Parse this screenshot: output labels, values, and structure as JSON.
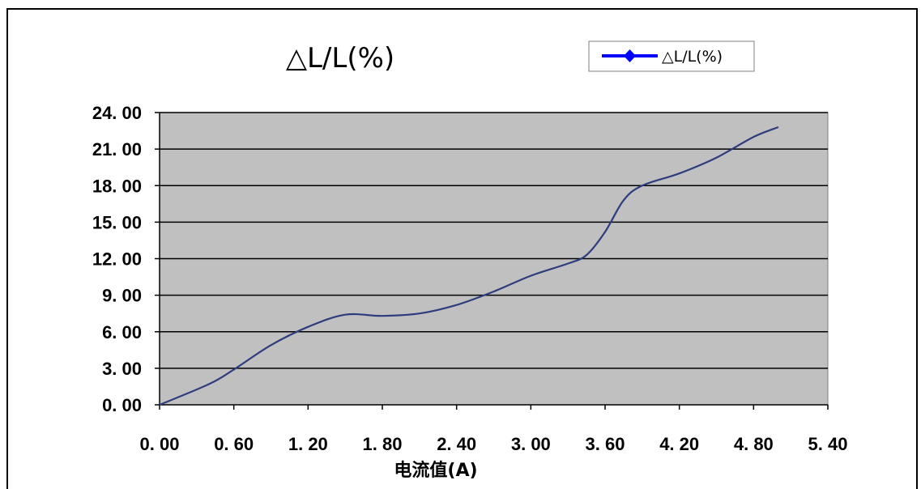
{
  "chart_data": {
    "type": "line",
    "title": "△L/L(%)",
    "xlabel": "电流值(A)",
    "ylabel": "",
    "xlim": [
      0,
      5.4
    ],
    "ylim": [
      0,
      24
    ],
    "xticks": [
      0,
      0.6,
      1.2,
      1.8,
      2.4,
      3.0,
      3.6,
      4.2,
      4.8,
      5.4
    ],
    "yticks": [
      0,
      3,
      6,
      9,
      12,
      15,
      18,
      21,
      24
    ],
    "xtick_labels": [
      "0. 00",
      "0. 60",
      "1. 20",
      "1. 80",
      "2. 40",
      "3. 00",
      "3. 60",
      "4. 20",
      "4. 80",
      "5. 40"
    ],
    "ytick_labels": [
      "0. 00",
      "3. 00",
      "6. 00",
      "9. 00",
      "12. 00",
      "15. 00",
      "18. 00",
      "21. 00",
      "24. 00"
    ],
    "grid": "horizontal",
    "legend_position": "top-right",
    "series": [
      {
        "name": "△L/L(%)",
        "color": "#2e3d7e",
        "legend_color": "#0000ff",
        "marker": "diamond",
        "x": [
          0.0,
          0.4,
          0.6,
          0.9,
          1.2,
          1.5,
          1.8,
          2.1,
          2.4,
          2.7,
          3.0,
          3.3,
          3.45,
          3.6,
          3.75,
          3.9,
          4.2,
          4.5,
          4.8,
          5.0
        ],
        "y": [
          0.0,
          1.7,
          2.9,
          4.9,
          6.4,
          7.4,
          7.3,
          7.5,
          8.2,
          9.3,
          10.6,
          11.6,
          12.3,
          14.2,
          16.8,
          18.0,
          19.0,
          20.3,
          22.0,
          22.8
        ]
      }
    ]
  }
}
